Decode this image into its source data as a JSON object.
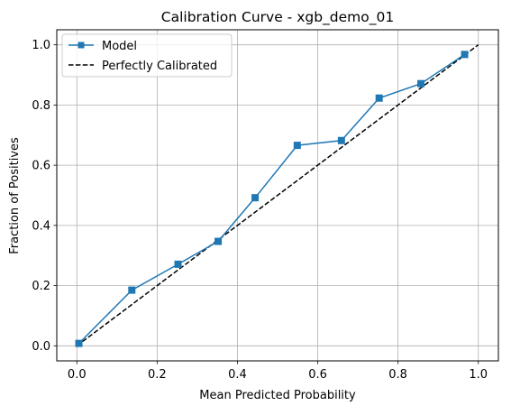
{
  "chart_data": {
    "type": "line",
    "title": "Calibration Curve - xgb_demo_01",
    "xlabel": "Mean Predicted Probability",
    "ylabel": "Fraction of Positives",
    "xlim": [
      -0.05,
      1.05
    ],
    "ylim": [
      -0.05,
      1.05
    ],
    "grid": true,
    "legend_position": "top-left",
    "x_ticks": [
      "0.0",
      "0.2",
      "0.4",
      "0.6",
      "0.8",
      "1.0"
    ],
    "y_ticks": [
      "0.0",
      "0.2",
      "0.4",
      "0.6",
      "0.8",
      "1.0"
    ],
    "series": [
      {
        "name": "Model",
        "marker": "square",
        "color": "#1f77b4",
        "x": [
          0.005,
          0.137,
          0.252,
          0.352,
          0.444,
          0.549,
          0.659,
          0.753,
          0.857,
          0.966
        ],
        "y": [
          0.008,
          0.185,
          0.271,
          0.347,
          0.492,
          0.666,
          0.682,
          0.823,
          0.871,
          0.968
        ]
      },
      {
        "name": "Perfectly Calibrated",
        "style": "dashed",
        "color": "#000000",
        "x": [
          0,
          1
        ],
        "y": [
          0,
          1
        ]
      }
    ]
  }
}
